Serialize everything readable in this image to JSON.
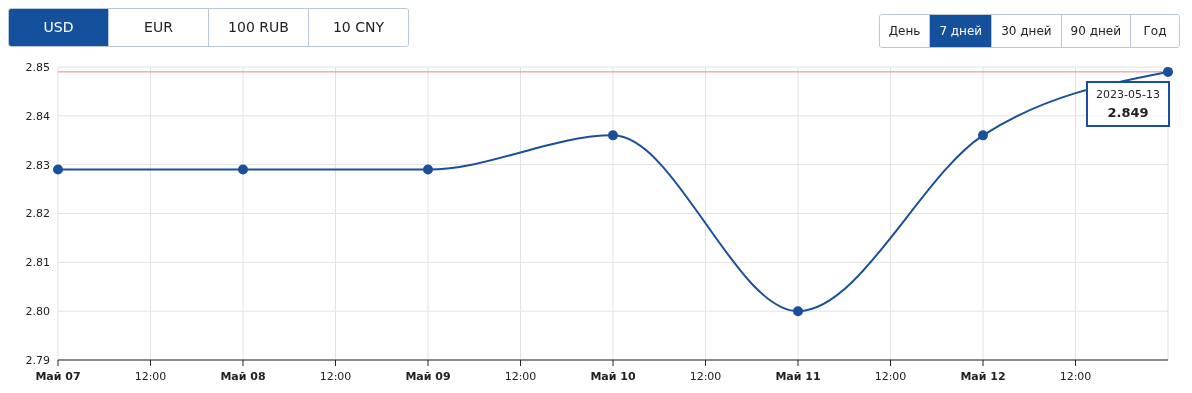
{
  "chart_data": {
    "type": "line",
    "x": [
      "2023-05-07T00:00",
      "2023-05-08T00:00",
      "2023-05-09T00:00",
      "2023-05-10T00:00",
      "2023-05-11T00:00",
      "2023-05-12T00:00",
      "2023-05-13T00:00"
    ],
    "series": [
      {
        "color": "#1a4f9c",
        "values": [
          2.829,
          2.829,
          2.829,
          2.836,
          2.8,
          2.836,
          2.849
        ]
      }
    ],
    "xlim": [
      "2023-05-07T00:00",
      "2023-05-13T00:00"
    ],
    "xticks": [
      {
        "value": "2023-05-07T00:00",
        "label": "Май 07"
      },
      {
        "value": "2023-05-07T12:00",
        "label": "12:00"
      },
      {
        "value": "2023-05-08T00:00",
        "label": "Май 08"
      },
      {
        "value": "2023-05-08T12:00",
        "label": "12:00"
      },
      {
        "value": "2023-05-09T00:00",
        "label": "Май 09"
      },
      {
        "value": "2023-05-09T12:00",
        "label": "12:00"
      },
      {
        "value": "2023-05-10T00:00",
        "label": "Май 10"
      },
      {
        "value": "2023-05-10T12:00",
        "label": "12:00"
      },
      {
        "value": "2023-05-11T00:00",
        "label": "Май 11"
      },
      {
        "value": "2023-05-11T12:00",
        "label": "12:00"
      },
      {
        "value": "2023-05-12T00:00",
        "label": "Май 12"
      },
      {
        "value": "2023-05-12T12:00",
        "label": "12:00"
      }
    ],
    "ylim": [
      2.79,
      2.85
    ],
    "yticks": [
      2.79,
      {
        "value": 2.8,
        "label": "2.80"
      },
      2.81,
      2.82,
      2.83,
      2.84,
      2.85
    ],
    "grid": true,
    "marker": "circle",
    "line_style": "solid",
    "ref_lines": [
      {
        "axis": "y",
        "value": 2.849,
        "color": "#f08080"
      }
    ],
    "annotations": [
      "USD",
      "EUR",
      "100 RUB",
      "10 CNY",
      "День",
      "7 дней",
      "30 дней",
      "90 дней",
      "Год",
      "2023-05-13",
      "2.849"
    ]
  }
}
